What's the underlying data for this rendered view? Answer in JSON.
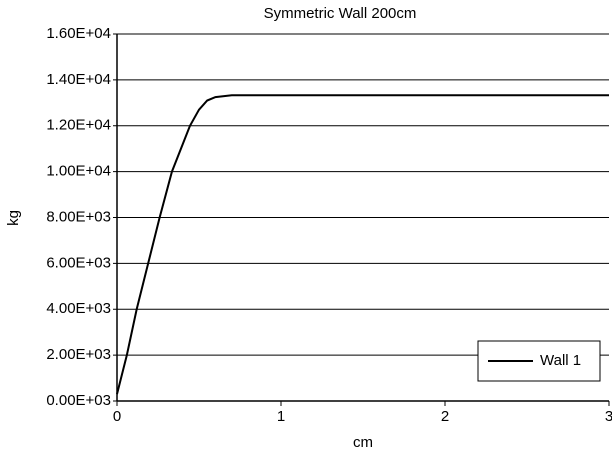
{
  "chart_data": {
    "type": "line",
    "title": "Symmetric Wall 200cm",
    "x_label": "cm",
    "y_label": "kg",
    "series": [
      {
        "name": "Wall 1",
        "color": "#000000",
        "x": [
          0,
          0.06,
          0.12,
          0.19,
          0.26,
          0.335,
          0.445,
          0.5,
          0.55,
          0.6,
          0.7,
          3
        ],
        "values": [
          300,
          2000,
          4000,
          6000,
          8000,
          10000,
          12000,
          12700,
          13100,
          13250,
          13330,
          13330
        ]
      }
    ],
    "xlim": [
      0,
      3
    ],
    "xticks": [
      0,
      1,
      2,
      3
    ],
    "ylim": [
      0,
      16000
    ],
    "yticks": [
      {
        "value": 0,
        "label": "0.00E+03"
      },
      {
        "value": 2000,
        "label": "2.00E+03"
      },
      {
        "value": 4000,
        "label": "4.00E+03"
      },
      {
        "value": 6000,
        "label": "6.00E+03"
      },
      {
        "value": 8000,
        "label": "8.00E+03"
      },
      {
        "value": 10000,
        "label": "1.00E+04"
      },
      {
        "value": 12000,
        "label": "1.20E+04"
      },
      {
        "value": 14000,
        "label": "1.40E+04"
      },
      {
        "value": 16000,
        "label": "1.60E+04"
      }
    ],
    "grid": true,
    "legend": "lower right"
  }
}
